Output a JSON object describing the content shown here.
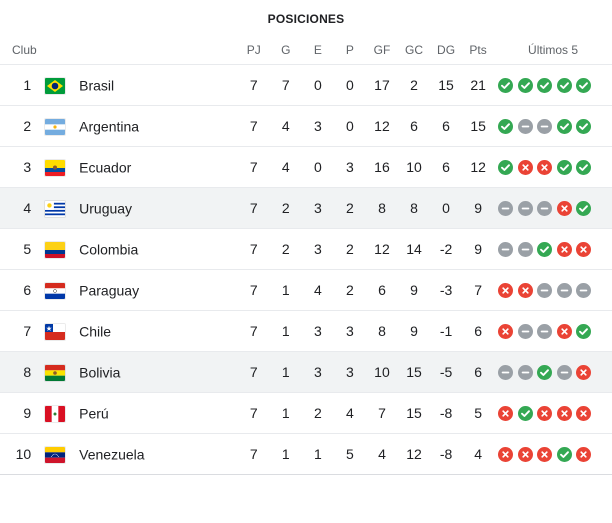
{
  "title": "POSICIONES",
  "headers": {
    "club": "Club",
    "pj": "PJ",
    "g": "G",
    "e": "E",
    "p": "P",
    "gf": "GF",
    "gc": "GC",
    "dg": "DG",
    "pts": "Pts",
    "last5": "Últimos 5"
  },
  "colors": {
    "win": "#34a853",
    "loss": "#ea4335",
    "draw": "#9aa0a6",
    "highlight_row": "#f1f3f4"
  },
  "teams": [
    {
      "pos": "1",
      "name": "Brasil",
      "flag": "brazil-flag-icon",
      "pj": "7",
      "g": "7",
      "e": "0",
      "p": "0",
      "gf": "17",
      "gc": "2",
      "dg": "15",
      "pts": "21",
      "last5": [
        "W",
        "W",
        "W",
        "W",
        "W"
      ]
    },
    {
      "pos": "2",
      "name": "Argentina",
      "flag": "argentina-flag-icon",
      "pj": "7",
      "g": "4",
      "e": "3",
      "p": "0",
      "gf": "12",
      "gc": "6",
      "dg": "6",
      "pts": "15",
      "last5": [
        "W",
        "D",
        "D",
        "W",
        "W"
      ]
    },
    {
      "pos": "3",
      "name": "Ecuador",
      "flag": "ecuador-flag-icon",
      "pj": "7",
      "g": "4",
      "e": "0",
      "p": "3",
      "gf": "16",
      "gc": "10",
      "dg": "6",
      "pts": "12",
      "last5": [
        "W",
        "L",
        "L",
        "W",
        "W"
      ]
    },
    {
      "pos": "4",
      "name": "Uruguay",
      "flag": "uruguay-flag-icon",
      "pj": "7",
      "g": "2",
      "e": "3",
      "p": "2",
      "gf": "8",
      "gc": "8",
      "dg": "0",
      "pts": "9",
      "last5": [
        "D",
        "D",
        "D",
        "L",
        "W"
      ],
      "highlight": true
    },
    {
      "pos": "5",
      "name": "Colombia",
      "flag": "colombia-flag-icon",
      "pj": "7",
      "g": "2",
      "e": "3",
      "p": "2",
      "gf": "12",
      "gc": "14",
      "dg": "-2",
      "pts": "9",
      "last5": [
        "D",
        "D",
        "W",
        "L",
        "L"
      ]
    },
    {
      "pos": "6",
      "name": "Paraguay",
      "flag": "paraguay-flag-icon",
      "pj": "7",
      "g": "1",
      "e": "4",
      "p": "2",
      "gf": "6",
      "gc": "9",
      "dg": "-3",
      "pts": "7",
      "last5": [
        "L",
        "L",
        "D",
        "D",
        "D"
      ]
    },
    {
      "pos": "7",
      "name": "Chile",
      "flag": "chile-flag-icon",
      "pj": "7",
      "g": "1",
      "e": "3",
      "p": "3",
      "gf": "8",
      "gc": "9",
      "dg": "-1",
      "pts": "6",
      "last5": [
        "L",
        "D",
        "D",
        "L",
        "W"
      ]
    },
    {
      "pos": "8",
      "name": "Bolivia",
      "flag": "bolivia-flag-icon",
      "pj": "7",
      "g": "1",
      "e": "3",
      "p": "3",
      "gf": "10",
      "gc": "15",
      "dg": "-5",
      "pts": "6",
      "last5": [
        "D",
        "D",
        "W",
        "D",
        "L"
      ],
      "highlight": true
    },
    {
      "pos": "9",
      "name": "Perú",
      "flag": "peru-flag-icon",
      "pj": "7",
      "g": "1",
      "e": "2",
      "p": "4",
      "gf": "7",
      "gc": "15",
      "dg": "-8",
      "pts": "5",
      "last5": [
        "L",
        "W",
        "L",
        "L",
        "L"
      ]
    },
    {
      "pos": "10",
      "name": "Venezuela",
      "flag": "venezuela-flag-icon",
      "pj": "7",
      "g": "1",
      "e": "1",
      "p": "5",
      "gf": "4",
      "gc": "12",
      "dg": "-8",
      "pts": "4",
      "last5": [
        "L",
        "L",
        "L",
        "W",
        "L"
      ]
    }
  ]
}
